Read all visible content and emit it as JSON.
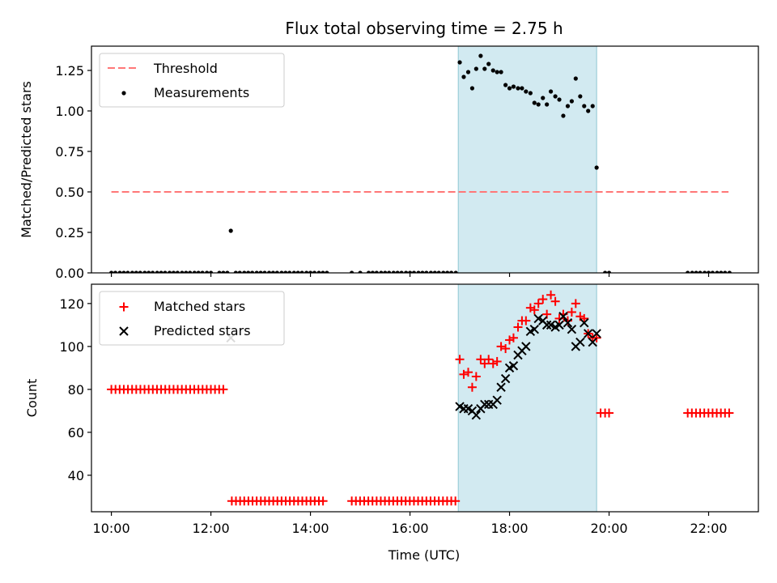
{
  "chart_data": {
    "title": "Flux total observing time = 2.75 h",
    "xlabel": "Time (UTC)",
    "xlim": [
      9.6,
      23.0
    ],
    "x_ticks": [
      {
        "value": 10,
        "label": "10:00"
      },
      {
        "value": 12,
        "label": "12:00"
      },
      {
        "value": 14,
        "label": "14:00"
      },
      {
        "value": 16,
        "label": "16:00"
      },
      {
        "value": 18,
        "label": "18:00"
      },
      {
        "value": 20,
        "label": "20:00"
      },
      {
        "value": 22,
        "label": "22:00"
      }
    ],
    "observing_window": {
      "start": 16.97,
      "end": 19.75,
      "color": "#add8e6"
    },
    "panels": [
      {
        "type": "scatter",
        "ylabel": "Matched/Predicted stars",
        "ylim": [
          0,
          1.4
        ],
        "y_ticks": [
          {
            "value": 0,
            "label": "0.00"
          },
          {
            "value": 0.25,
            "label": "0.25"
          },
          {
            "value": 0.5,
            "label": "0.50"
          },
          {
            "value": 0.75,
            "label": "0.75"
          },
          {
            "value": 1.0,
            "label": "1.00"
          },
          {
            "value": 1.25,
            "label": "1.25"
          }
        ],
        "legend_position": "upper-left",
        "threshold": {
          "name": "Threshold",
          "value": 0.5,
          "x_start": 10.0,
          "x_end": 22.4,
          "color": "#ff7777"
        },
        "series": [
          {
            "name": "Measurements",
            "marker": "dot",
            "color": "#000000",
            "x": [
              17.0,
              17.08,
              17.17,
              17.25,
              17.33,
              17.42,
              17.5,
              17.58,
              17.67,
              17.75,
              17.83,
              17.92,
              18.0,
              18.08,
              18.17,
              18.25,
              18.33,
              18.42,
              18.5,
              18.58,
              18.67,
              18.75,
              18.83,
              18.92,
              19.0,
              19.08,
              19.17,
              19.25,
              19.33,
              19.42,
              19.5,
              19.58,
              19.67,
              19.75,
              12.4
            ],
            "y": [
              1.3,
              1.21,
              1.24,
              1.14,
              1.26,
              1.34,
              1.26,
              1.29,
              1.25,
              1.24,
              1.24,
              1.16,
              1.14,
              1.15,
              1.14,
              1.14,
              1.12,
              1.11,
              1.05,
              1.04,
              1.08,
              1.04,
              1.12,
              1.09,
              1.07,
              0.97,
              1.03,
              1.06,
              1.2,
              1.09,
              1.03,
              1.0,
              1.03,
              0.65,
              0.26
            ],
            "zero_x": [
              10.0,
              10.08,
              10.17,
              10.25,
              10.33,
              10.42,
              10.5,
              10.58,
              10.67,
              10.75,
              10.83,
              10.92,
              11.0,
              11.08,
              11.17,
              11.25,
              11.33,
              11.42,
              11.5,
              11.58,
              11.67,
              11.75,
              11.83,
              11.92,
              12.0,
              12.17,
              12.25,
              12.33,
              12.5,
              12.58,
              12.67,
              12.75,
              12.83,
              12.92,
              13.0,
              13.08,
              13.17,
              13.25,
              13.33,
              13.42,
              13.5,
              13.58,
              13.67,
              13.75,
              13.83,
              13.92,
              14.0,
              14.08,
              14.17,
              14.25,
              14.33,
              14.83,
              15.0,
              15.17,
              15.25,
              15.33,
              15.42,
              15.5,
              15.58,
              15.67,
              15.75,
              15.83,
              15.92,
              16.0,
              16.08,
              16.17,
              16.25,
              16.33,
              16.42,
              16.5,
              16.58,
              16.67,
              16.75,
              16.83,
              16.92,
              19.92,
              20.0,
              21.58,
              21.67,
              21.75,
              21.83,
              21.92,
              22.0,
              22.08,
              22.17,
              22.25,
              22.33,
              22.42
            ]
          }
        ]
      },
      {
        "type": "scatter",
        "ylabel": "Count",
        "ylim": [
          23,
          129
        ],
        "y_ticks": [
          {
            "value": 40,
            "label": "40"
          },
          {
            "value": 60,
            "label": "60"
          },
          {
            "value": 80,
            "label": "80"
          },
          {
            "value": 100,
            "label": "100"
          },
          {
            "value": 120,
            "label": "120"
          }
        ],
        "legend_position": "upper-left",
        "series": [
          {
            "name": "Matched stars",
            "marker": "plus",
            "color": "#ff0000",
            "groups": [
              {
                "x_start": 10.0,
                "x_end": 12.33,
                "step": 0.0833,
                "y": 80
              },
              {
                "x_start": 12.42,
                "x_end": 14.33,
                "step": 0.0833,
                "y": 28
              },
              {
                "x_start": 14.83,
                "x_end": 16.92,
                "step": 0.0833,
                "y": 28
              },
              {
                "x_start": 21.58,
                "x_end": 22.42,
                "step": 0.0833,
                "y": 69
              }
            ],
            "x": [
              17.0,
              17.08,
              17.17,
              17.25,
              17.33,
              17.42,
              17.5,
              17.58,
              17.67,
              17.75,
              17.83,
              17.92,
              18.0,
              18.08,
              18.17,
              18.25,
              18.33,
              18.42,
              18.5,
              18.58,
              18.67,
              18.75,
              18.83,
              18.92,
              19.0,
              19.08,
              19.17,
              19.25,
              19.33,
              19.42,
              19.5,
              19.58,
              19.67,
              19.75,
              19.83,
              19.92,
              20.0
            ],
            "y": [
              94,
              87,
              88,
              81,
              86,
              94,
              92,
              94,
              92,
              93,
              100,
              99,
              103,
              104,
              109,
              112,
              112,
              118,
              117,
              120,
              122,
              115,
              124,
              121,
              113,
              115,
              112,
              116,
              120,
              114,
              113,
              106,
              104,
              104,
              69,
              69,
              69
            ]
          },
          {
            "name": "Predicted stars",
            "marker": "x",
            "color": "#000000",
            "x": [
              17.0,
              17.08,
              17.17,
              17.25,
              17.33,
              17.42,
              17.5,
              17.58,
              17.67,
              17.75,
              17.83,
              17.92,
              18.0,
              18.08,
              18.17,
              18.25,
              18.33,
              18.42,
              18.5,
              18.58,
              18.67,
              18.75,
              18.83,
              18.92,
              19.0,
              19.08,
              19.17,
              19.25,
              19.33,
              19.42,
              19.5,
              19.58,
              19.67,
              19.75,
              12.4
            ],
            "y": [
              72,
              71,
              71,
              70,
              68,
              71,
              73,
              73,
              73,
              75,
              81,
              85,
              90,
              91,
              96,
              98,
              100,
              107,
              108,
              113,
              112,
              110,
              110,
              109,
              110,
              114,
              111,
              108,
              100,
              102,
              111,
              106,
              102,
              106,
              104
            ]
          }
        ]
      }
    ]
  }
}
